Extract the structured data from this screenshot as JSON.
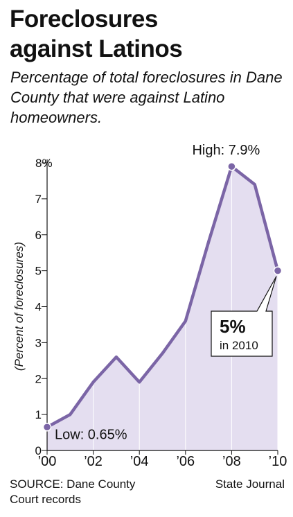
{
  "title_line1": "Foreclosures",
  "title_line2": "against Latinos",
  "subtitle": "Percentage of total foreclosures in Dane County that were against Latino homeowners.",
  "source": "SOURCE: Dane County Court records",
  "credit": "State Journal",
  "colors": {
    "line": "#7b65a6",
    "fill": "#e4def0",
    "axis": "#111111",
    "callout_border": "#111111"
  },
  "chart_data": {
    "type": "area",
    "title": "Foreclosures against Latinos",
    "subtitle": "Percentage of total foreclosures in Dane County that were against Latino homeowners.",
    "ylabel": "(Percent of foreclosures)",
    "xlabel": "",
    "ylim": [
      0,
      8
    ],
    "xlim": [
      2000,
      2010
    ],
    "y_ticks": [
      {
        "value": 0,
        "label": "0"
      },
      {
        "value": 1,
        "label": "1"
      },
      {
        "value": 2,
        "label": "2"
      },
      {
        "value": 3,
        "label": "3"
      },
      {
        "value": 4,
        "label": "4"
      },
      {
        "value": 5,
        "label": "5"
      },
      {
        "value": 6,
        "label": "6"
      },
      {
        "value": 7,
        "label": "7"
      },
      {
        "value": 8,
        "label": "8%"
      }
    ],
    "x_ticks": [
      {
        "value": 2000,
        "label": "’00"
      },
      {
        "value": 2002,
        "label": "’02"
      },
      {
        "value": 2004,
        "label": "’04"
      },
      {
        "value": 2006,
        "label": "’06"
      },
      {
        "value": 2008,
        "label": "’08"
      },
      {
        "value": 2010,
        "label": "’10"
      }
    ],
    "x": [
      2000,
      2001,
      2002,
      2003,
      2004,
      2005,
      2006,
      2007,
      2008,
      2009,
      2010
    ],
    "values": [
      0.65,
      1.0,
      1.9,
      2.6,
      1.9,
      2.7,
      3.6,
      5.8,
      7.9,
      7.4,
      5.0
    ],
    "grid": false,
    "annotations": {
      "high": {
        "x": 2008,
        "y": 7.9,
        "text": "High: 7.9%"
      },
      "low": {
        "x": 2000,
        "y": 0.65,
        "text": "Low: 0.65%"
      },
      "callout": {
        "x": 2010,
        "y": 5.0,
        "value_text": "5%",
        "detail_text": "in 2010"
      }
    }
  }
}
